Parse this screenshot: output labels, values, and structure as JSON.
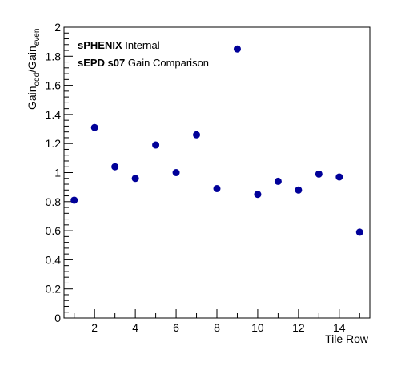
{
  "chart_data": {
    "type": "scatter",
    "xlabel": "Tile Row",
    "ylabel": {
      "main": "Gain",
      "sub1": "odd",
      "mid": "/Gain",
      "sub2": "even"
    },
    "annotations": [
      {
        "bold": "sPHENIX",
        "rest": " Internal"
      },
      {
        "bold": "sEPD s07",
        "rest": " Gain Comparison"
      }
    ],
    "xlim": [
      0.5,
      15.5
    ],
    "ylim": [
      0,
      2
    ],
    "x_major_ticks": [
      2,
      4,
      6,
      8,
      10,
      12,
      14
    ],
    "x_tick_labels": [
      "2",
      "4",
      "6",
      "8",
      "10",
      "12",
      "14"
    ],
    "y_major_ticks": [
      0,
      0.2,
      0.4,
      0.6,
      0.8,
      1,
      1.2,
      1.4,
      1.6,
      1.8,
      2
    ],
    "y_tick_labels": [
      "0",
      "0.2",
      "0.4",
      "0.6",
      "0.8",
      "1",
      "1.2",
      "1.4",
      "1.6",
      "1.8",
      "2"
    ],
    "marker_color": "#000099",
    "grid": false,
    "points": [
      {
        "x": 1,
        "y": 0.81
      },
      {
        "x": 2,
        "y": 1.31
      },
      {
        "x": 3,
        "y": 1.04
      },
      {
        "x": 4,
        "y": 0.96
      },
      {
        "x": 5,
        "y": 1.19
      },
      {
        "x": 6,
        "y": 1.0
      },
      {
        "x": 7,
        "y": 1.26
      },
      {
        "x": 8,
        "y": 0.89
      },
      {
        "x": 9,
        "y": 1.85
      },
      {
        "x": 10,
        "y": 0.85
      },
      {
        "x": 11,
        "y": 0.94
      },
      {
        "x": 12,
        "y": 0.88
      },
      {
        "x": 13,
        "y": 0.99
      },
      {
        "x": 14,
        "y": 0.97
      },
      {
        "x": 15,
        "y": 0.59
      }
    ]
  }
}
